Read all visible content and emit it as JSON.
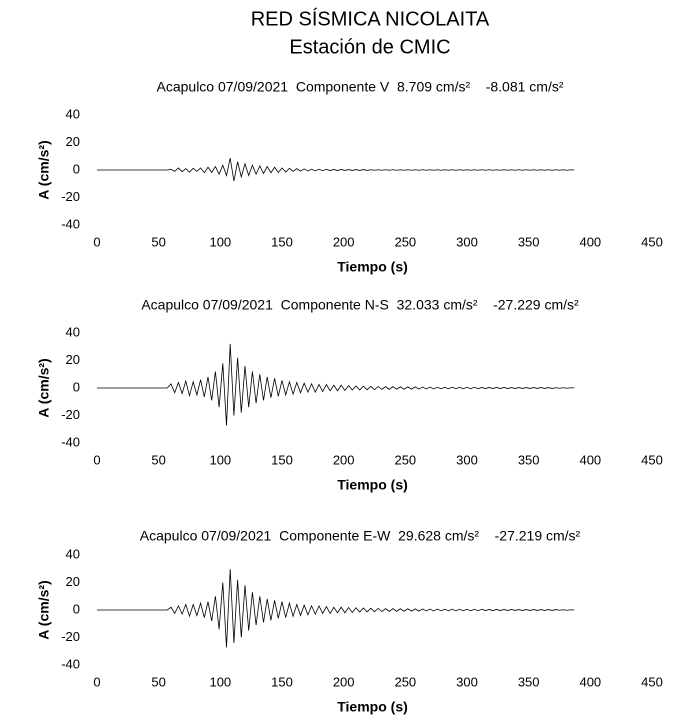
{
  "header": {
    "title": "RED SÍSMICA NICOLAITA",
    "subtitle": "Estación de CMIC"
  },
  "chart_data": [
    {
      "type": "line",
      "title": "Acapulco 07/09/2021  Componente V  8.709 cm/s²    -8.081 cm/s²",
      "x_label": "Tiempo (s)",
      "y_label": "A (cm/s²)",
      "xlim": [
        0,
        450
      ],
      "xticks": [
        0,
        50,
        100,
        150,
        200,
        250,
        300,
        350,
        400,
        450
      ],
      "ylim": [
        -40,
        40
      ],
      "yticks": [
        -40,
        -20,
        0,
        20,
        40
      ],
      "x": [
        0,
        3,
        6,
        9,
        12,
        15,
        18,
        21,
        24,
        27,
        30,
        33,
        36,
        39,
        42,
        45,
        48,
        51,
        54,
        57,
        60,
        63,
        66,
        69,
        72,
        75,
        78,
        81,
        84,
        87,
        90,
        93,
        96,
        99,
        102,
        105,
        108,
        111,
        114,
        117,
        120,
        123,
        126,
        129,
        132,
        135,
        138,
        141,
        144,
        147,
        150,
        153,
        156,
        159,
        162,
        165,
        168,
        171,
        174,
        177,
        180,
        183,
        186,
        189,
        192,
        195,
        198,
        201,
        204,
        207,
        210,
        213,
        216,
        219,
        222,
        225,
        228,
        231,
        234,
        237,
        240,
        243,
        246,
        249,
        252,
        255,
        258,
        261,
        264,
        267,
        270,
        273,
        276,
        279,
        282,
        285,
        288,
        291,
        294,
        297,
        300,
        303,
        306,
        309,
        312,
        315,
        318,
        321,
        324,
        327,
        330,
        333,
        336,
        339,
        342,
        345,
        348,
        351,
        354,
        357,
        360,
        363,
        366,
        369,
        372,
        375,
        378,
        381,
        384,
        387
      ],
      "series": [
        {
          "color": "#000000",
          "values": [
            0,
            0,
            0,
            0,
            0,
            0,
            0,
            0,
            0,
            0,
            0,
            0,
            0,
            0,
            0,
            0,
            0,
            0,
            0,
            0,
            0.5,
            -1,
            1.5,
            -1.2,
            1,
            -1.5,
            1.2,
            -1,
            1.5,
            -2,
            2,
            -1.8,
            2.5,
            -3,
            3.5,
            -4,
            8.709,
            -8.081,
            6,
            -5,
            4.5,
            -4,
            3.5,
            -3,
            3,
            -2.5,
            2.5,
            -2,
            2,
            -1.8,
            1.5,
            -1.5,
            1.2,
            -1,
            1,
            -0.8,
            0.8,
            -0.7,
            0.6,
            -0.6,
            0.5,
            -0.5,
            0.5,
            -0.4,
            0.4,
            -0.4,
            0.4,
            -0.3,
            0.3,
            -0.3,
            0.3,
            -0.3,
            0.3,
            -0.3,
            0.2,
            -0.2,
            0.2,
            -0.2,
            0.2,
            -0.2,
            0.2,
            -0.2,
            0.2,
            -0.2,
            0.2,
            -0.2,
            0.2,
            -0.2,
            0.2,
            -0.2,
            0.2,
            -0.2,
            0.2,
            -0.2,
            0.2,
            -0.2,
            0.2,
            -0.2,
            0.2,
            -0.2,
            0.2,
            -0.2,
            0.2,
            -0.2,
            0.2,
            -0.2,
            0.2,
            -0.2,
            0.2,
            -0.2,
            0.2,
            -0.2,
            0.2,
            -0.2,
            0.2,
            -0.2,
            0.2,
            -0.2,
            0.2,
            -0.2,
            0.2,
            -0.2,
            0.2,
            -0.2,
            0.2,
            -0.2,
            0.2,
            -0.2,
            0.2,
            0
          ]
        }
      ]
    },
    {
      "type": "line",
      "title": "Acapulco 07/09/2021  Componente N-S  32.033 cm/s²    -27.229 cm/s²",
      "x_label": "Tiempo (s)",
      "y_label": "A (cm/s²)",
      "xlim": [
        0,
        450
      ],
      "xticks": [
        0,
        50,
        100,
        150,
        200,
        250,
        300,
        350,
        400,
        450
      ],
      "ylim": [
        -40,
        40
      ],
      "yticks": [
        -40,
        -20,
        0,
        20,
        40
      ],
      "x": [
        0,
        3,
        6,
        9,
        12,
        15,
        18,
        21,
        24,
        27,
        30,
        33,
        36,
        39,
        42,
        45,
        48,
        51,
        54,
        57,
        60,
        63,
        66,
        69,
        72,
        75,
        78,
        81,
        84,
        87,
        90,
        93,
        96,
        99,
        102,
        105,
        108,
        111,
        114,
        117,
        120,
        123,
        126,
        129,
        132,
        135,
        138,
        141,
        144,
        147,
        150,
        153,
        156,
        159,
        162,
        165,
        168,
        171,
        174,
        177,
        180,
        183,
        186,
        189,
        192,
        195,
        198,
        201,
        204,
        207,
        210,
        213,
        216,
        219,
        222,
        225,
        228,
        231,
        234,
        237,
        240,
        243,
        246,
        249,
        252,
        255,
        258,
        261,
        264,
        267,
        270,
        273,
        276,
        279,
        282,
        285,
        288,
        291,
        294,
        297,
        300,
        303,
        306,
        309,
        312,
        315,
        318,
        321,
        324,
        327,
        330,
        333,
        336,
        339,
        342,
        345,
        348,
        351,
        354,
        357,
        360,
        363,
        366,
        369,
        372,
        375,
        378,
        381,
        384,
        387
      ],
      "series": [
        {
          "color": "#000000",
          "values": [
            0,
            0,
            0,
            0,
            0,
            0,
            0,
            0,
            0,
            0,
            0,
            0,
            0,
            0,
            0,
            0,
            0,
            0,
            0,
            0,
            3,
            -3.5,
            4,
            -4,
            5,
            -5.5,
            4.5,
            -5,
            6,
            -6.5,
            8,
            -9,
            12,
            -14,
            18,
            -27.229,
            32.033,
            -20,
            22,
            -18,
            16,
            -14,
            12,
            -11,
            10,
            -9,
            8,
            -7,
            7,
            -6,
            5.5,
            -5,
            4.5,
            -4.5,
            4,
            -3.5,
            3.5,
            -3,
            3,
            -3,
            2.5,
            -2.5,
            2.5,
            -2,
            2,
            -2,
            2,
            -1.8,
            1.8,
            -1.5,
            1.5,
            -1.5,
            1.4,
            -1.3,
            1.2,
            -1.2,
            1.1,
            -1,
            1,
            -1,
            1,
            -0.9,
            0.9,
            -0.9,
            0.8,
            -0.8,
            0.8,
            -0.8,
            0.7,
            -0.7,
            0.7,
            -0.7,
            0.6,
            -0.6,
            0.6,
            -0.6,
            0.6,
            -0.5,
            0.5,
            -0.5,
            0.5,
            -0.5,
            0.5,
            -0.5,
            0.4,
            -0.4,
            0.4,
            -0.4,
            0.4,
            -0.4,
            0.4,
            -0.4,
            0.3,
            -0.3,
            0.3,
            -0.3,
            0.3,
            -0.3,
            0.3,
            -0.3,
            0.3,
            -0.3,
            0.3,
            -0.3,
            0.2,
            -0.2,
            0.2,
            -0.2,
            0.2,
            0
          ]
        }
      ]
    },
    {
      "type": "line",
      "title": "Acapulco 07/09/2021  Componente E-W  29.628 cm/s²    -27.219 cm/s²",
      "x_label": "Tiempo (s)",
      "y_label": "A (cm/s²)",
      "xlim": [
        0,
        450
      ],
      "xticks": [
        0,
        50,
        100,
        150,
        200,
        250,
        300,
        350,
        400,
        450
      ],
      "ylim": [
        -40,
        40
      ],
      "yticks": [
        -40,
        -20,
        0,
        20,
        40
      ],
      "x": [
        0,
        3,
        6,
        9,
        12,
        15,
        18,
        21,
        24,
        27,
        30,
        33,
        36,
        39,
        42,
        45,
        48,
        51,
        54,
        57,
        60,
        63,
        66,
        69,
        72,
        75,
        78,
        81,
        84,
        87,
        90,
        93,
        96,
        99,
        102,
        105,
        108,
        111,
        114,
        117,
        120,
        123,
        126,
        129,
        132,
        135,
        138,
        141,
        144,
        147,
        150,
        153,
        156,
        159,
        162,
        165,
        168,
        171,
        174,
        177,
        180,
        183,
        186,
        189,
        192,
        195,
        198,
        201,
        204,
        207,
        210,
        213,
        216,
        219,
        222,
        225,
        228,
        231,
        234,
        237,
        240,
        243,
        246,
        249,
        252,
        255,
        258,
        261,
        264,
        267,
        270,
        273,
        276,
        279,
        282,
        285,
        288,
        291,
        294,
        297,
        300,
        303,
        306,
        309,
        312,
        315,
        318,
        321,
        324,
        327,
        330,
        333,
        336,
        339,
        342,
        345,
        348,
        351,
        354,
        357,
        360,
        363,
        366,
        369,
        372,
        375,
        378,
        381,
        384,
        387
      ],
      "series": [
        {
          "color": "#000000",
          "values": [
            0,
            0,
            0,
            0,
            0,
            0,
            0,
            0,
            0,
            0,
            0,
            0,
            0,
            0,
            0,
            0,
            0,
            0,
            0,
            0,
            2,
            -2.5,
            3,
            -3,
            4,
            -4.5,
            4,
            -4,
            5,
            -5.5,
            6,
            -8,
            10,
            -14,
            20,
            -27.219,
            29.628,
            -24,
            22,
            -20,
            18,
            -15,
            13,
            -11,
            10,
            -9,
            8,
            -7.5,
            7,
            -6,
            6,
            -5.5,
            5,
            -4.5,
            4,
            -4,
            3.5,
            -3.5,
            3,
            -3,
            3,
            -2.5,
            2.5,
            -2.5,
            2,
            -2,
            2,
            -2,
            1.8,
            -1.8,
            1.6,
            -1.5,
            1.5,
            -1.4,
            1.3,
            -1.2,
            1.2,
            -1.1,
            1,
            -1,
            1,
            -1,
            0.9,
            -0.9,
            0.9,
            -0.8,
            0.8,
            -0.8,
            0.8,
            -0.7,
            0.7,
            -0.7,
            0.7,
            -0.6,
            0.6,
            -0.6,
            0.6,
            -0.6,
            0.5,
            -0.5,
            0.5,
            -0.5,
            0.5,
            -0.5,
            0.5,
            -0.4,
            0.4,
            -0.4,
            0.4,
            -0.4,
            0.4,
            -0.4,
            0.4,
            -0.3,
            0.3,
            -0.3,
            0.3,
            -0.3,
            0.3,
            -0.3,
            0.3,
            -0.3,
            0.3,
            -0.3,
            0.3,
            -0.2,
            0.2,
            -0.2,
            0.2,
            0
          ]
        }
      ]
    }
  ]
}
